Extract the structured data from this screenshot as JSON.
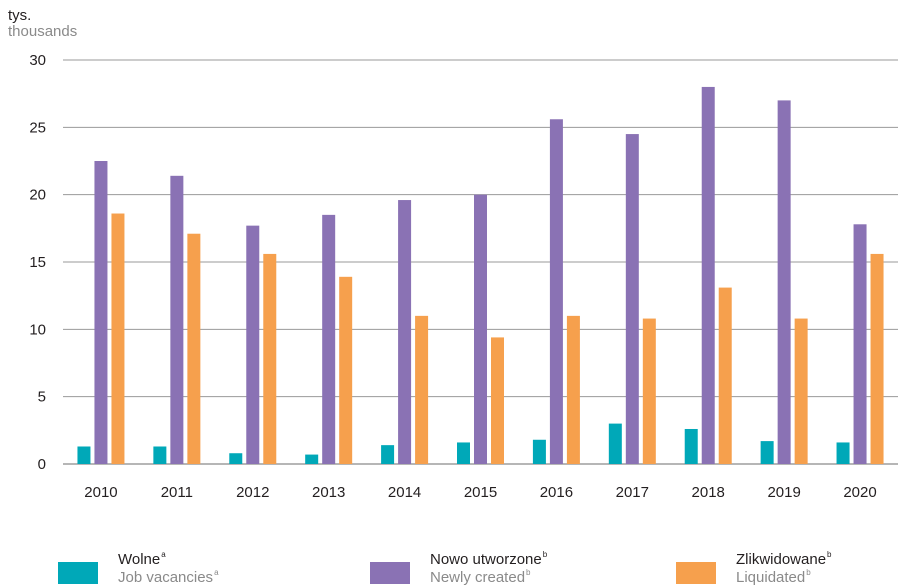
{
  "unit": {
    "pl": "tys.",
    "en": "thousands"
  },
  "colors": {
    "wolne": "#00a8b8",
    "nowo": "#8a72b4",
    "zlikw": "#f6a04d",
    "grid": "#9a9a9a",
    "text": "#231f20",
    "muted": "#8a8a8a"
  },
  "legend": [
    {
      "pl": "Wolne",
      "en": "Job vacancies",
      "sup_pl": "a",
      "sup_en": "a"
    },
    {
      "pl": "Nowo utworzone",
      "en": "Newly created",
      "sup_pl": "b",
      "sup_en": "b"
    },
    {
      "pl": "Zlikwidowane",
      "en": "Liquidated",
      "sup_pl": "b",
      "sup_en": "b"
    }
  ],
  "chart_data": {
    "type": "bar",
    "categories": [
      "2010",
      "2011",
      "2012",
      "2013",
      "2014",
      "2015",
      "2016",
      "2017",
      "2018",
      "2019",
      "2020"
    ],
    "series": [
      {
        "name": "Wolne / Job vacancies",
        "color": "#00a8b8",
        "values": [
          1.3,
          1.3,
          0.8,
          0.7,
          1.4,
          1.6,
          1.8,
          3.0,
          2.6,
          1.7,
          1.6
        ]
      },
      {
        "name": "Nowo utworzone / Newly created",
        "color": "#8a72b4",
        "values": [
          22.5,
          21.4,
          17.7,
          18.5,
          19.6,
          20.0,
          25.6,
          24.5,
          28.0,
          27.0,
          17.8
        ]
      },
      {
        "name": "Zlikwidowane / Liquidated",
        "color": "#f6a04d",
        "values": [
          18.6,
          17.1,
          15.6,
          13.9,
          11.0,
          9.4,
          11.0,
          10.8,
          13.1,
          10.8,
          15.6
        ]
      }
    ],
    "y_ticks": [
      0,
      5,
      10,
      15,
      20,
      25,
      30
    ],
    "ylim": [
      0,
      30
    ],
    "grid": true,
    "legend_position": "bottom"
  }
}
